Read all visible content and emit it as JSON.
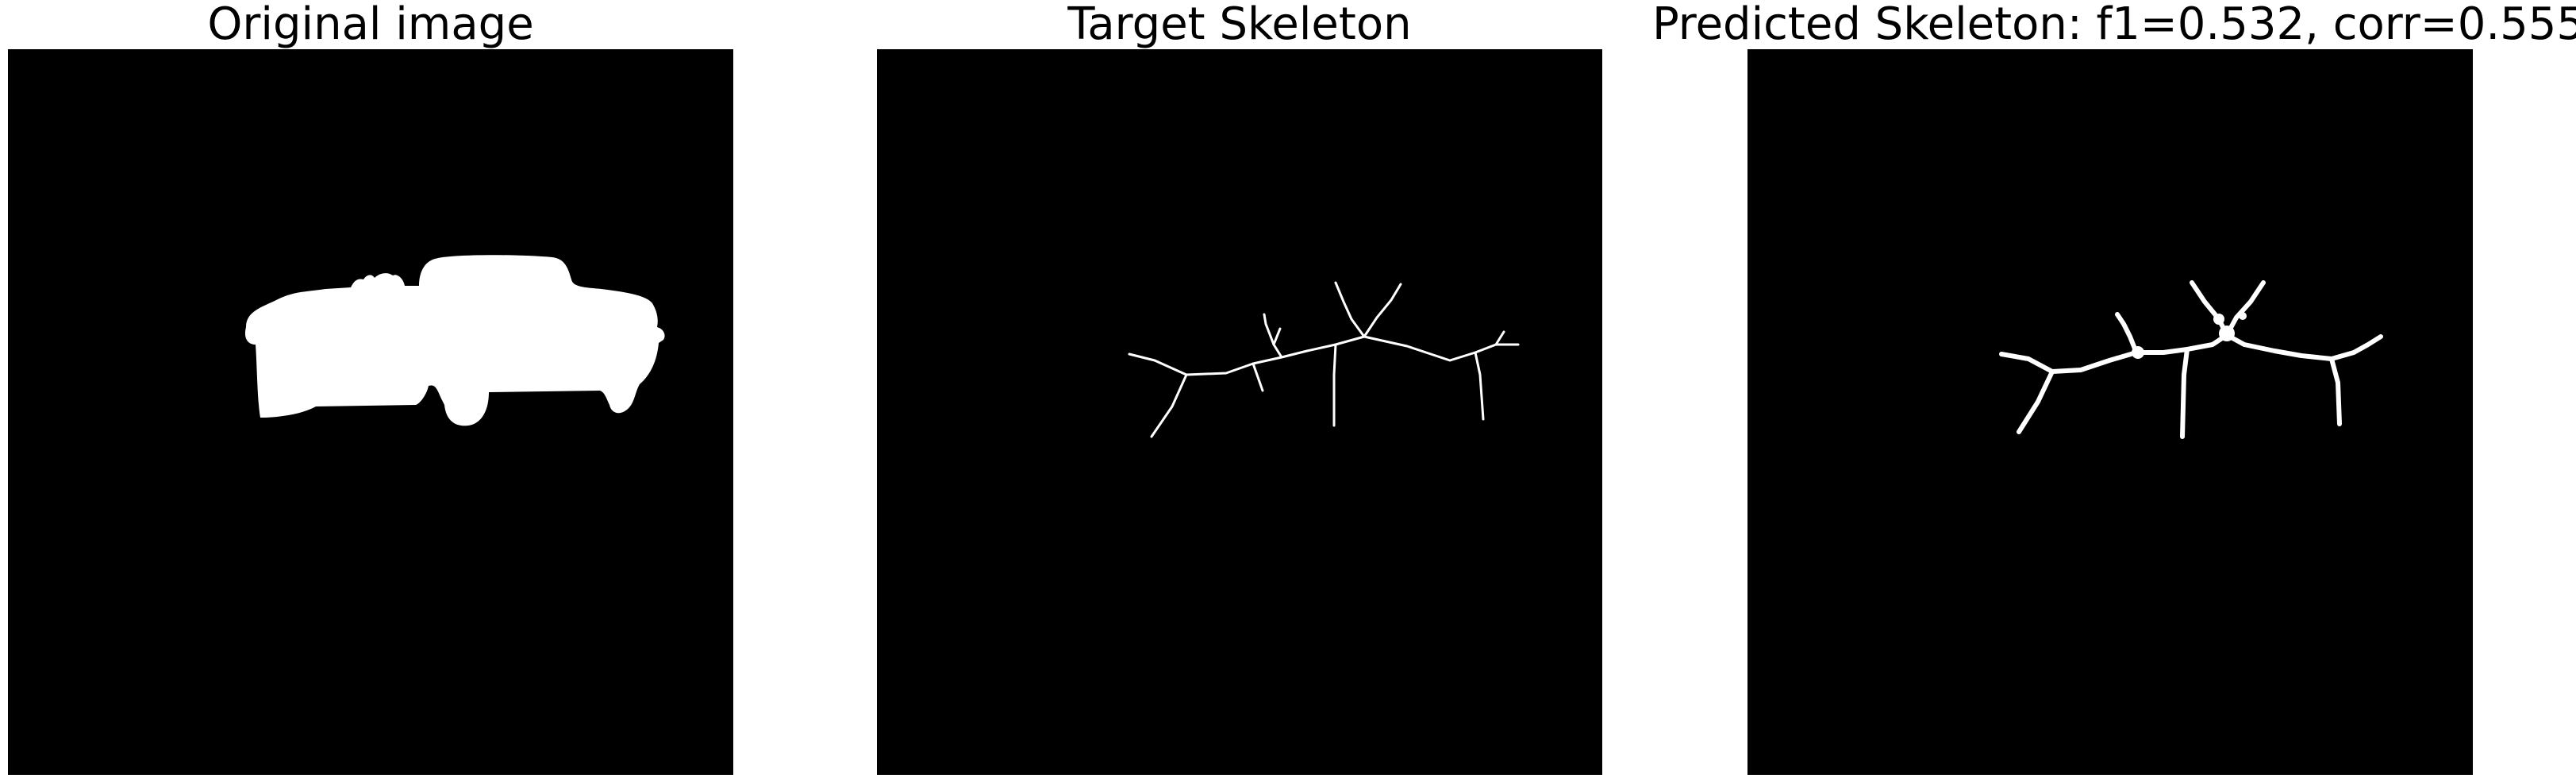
{
  "panels": [
    {
      "title": "Original image"
    },
    {
      "title": "Target Skeleton"
    },
    {
      "title": "Predicted Skeleton: f1=0.532, corr=0.555"
    }
  ],
  "colors": {
    "background": "#000000",
    "foreground": "#ffffff"
  }
}
